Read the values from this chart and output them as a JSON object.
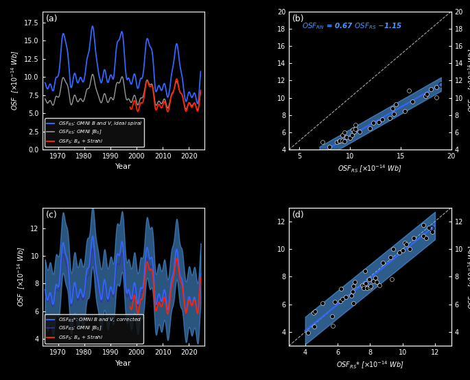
{
  "bg_color": "#000000",
  "text_color": "#ffffff",
  "panel_a": {
    "title": "(a)",
    "xlabel": "Year",
    "xlim": [
      1964,
      2026
    ],
    "ylim": [
      0.0,
      19.0
    ],
    "yticks": [
      0.0,
      2.5,
      5.0,
      7.5,
      10.0,
      12.5,
      15.0,
      17.5
    ],
    "xticks": [
      1970,
      1980,
      1990,
      2000,
      2010,
      2020
    ]
  },
  "panel_b": {
    "title": "(b)",
    "xlim": [
      4,
      20
    ],
    "ylim": [
      4,
      20
    ],
    "xticks": [
      5,
      10,
      15,
      20
    ],
    "yticks": [
      4,
      6,
      8,
      10,
      12,
      14,
      16,
      18,
      20
    ],
    "annotation_color": "#4499ff",
    "reg_slope": 0.67,
    "reg_intercept": -1.15,
    "reg_x_start": 7.0,
    "reg_x_end": 19.0
  },
  "panel_c": {
    "title": "(c)",
    "xlabel": "Year",
    "xlim": [
      1964,
      2026
    ],
    "ylim": [
      3.5,
      13.5
    ],
    "yticks": [
      4,
      6,
      8,
      10,
      12
    ],
    "xticks": [
      1970,
      1980,
      1990,
      2000,
      2010,
      2020
    ]
  },
  "panel_d": {
    "title": "(d)",
    "xlim": [
      3,
      13
    ],
    "ylim": [
      3,
      13
    ],
    "xticks": [
      4,
      6,
      8,
      10,
      12
    ],
    "yticks": [
      4,
      6,
      8,
      10,
      12
    ]
  },
  "colors": {
    "blue": "#3366ff",
    "gray": "#999999",
    "red": "#ff2200",
    "cyan_fill": "#55aaff",
    "white": "#ffffff",
    "dark_blue_line": "#2255dd"
  }
}
